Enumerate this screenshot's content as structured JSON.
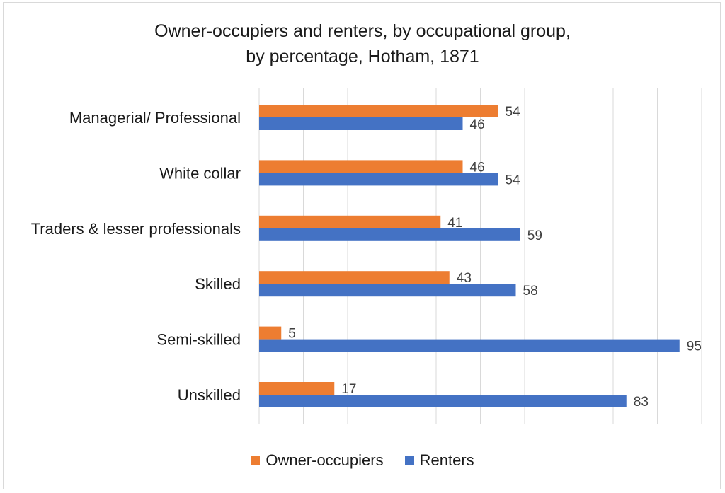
{
  "chart_data": {
    "type": "bar",
    "orientation": "horizontal",
    "title_lines": [
      "Owner-occupiers and renters, by occupational group,",
      "by percentage, Hotham, 1871"
    ],
    "categories": [
      "Managerial/ Professional",
      "White collar",
      "Traders & lesser professionals",
      "Skilled",
      "Semi-skilled",
      "Unskilled"
    ],
    "series": [
      {
        "name": "Owner-occupiers",
        "color": "#ed7d31",
        "values": [
          54,
          46,
          41,
          43,
          5,
          17
        ]
      },
      {
        "name": "Renters",
        "color": "#4472c4",
        "values": [
          46,
          54,
          59,
          58,
          95,
          83
        ]
      }
    ],
    "xlim": [
      0,
      100
    ],
    "grid": true,
    "legend_position": "bottom"
  }
}
